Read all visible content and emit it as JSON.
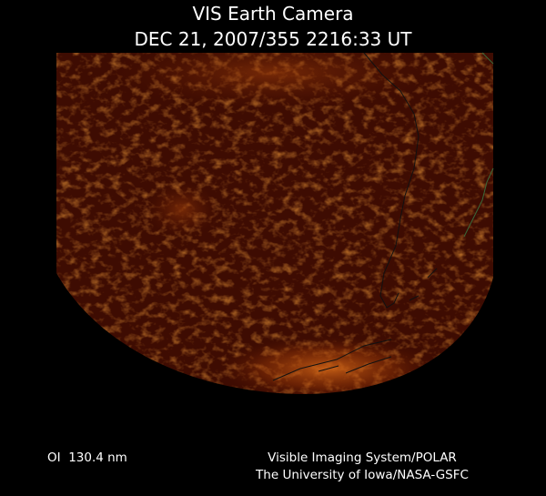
{
  "header": {
    "title": "VIS Earth Camera",
    "timestamp": "DEC 21, 2007/355 2216:33 UT"
  },
  "footer": {
    "filter": "OI  130.4 nm",
    "instrument": "Visible Imaging System/POLAR",
    "institution": "The University of Iowa/NASA-GSFC"
  }
}
